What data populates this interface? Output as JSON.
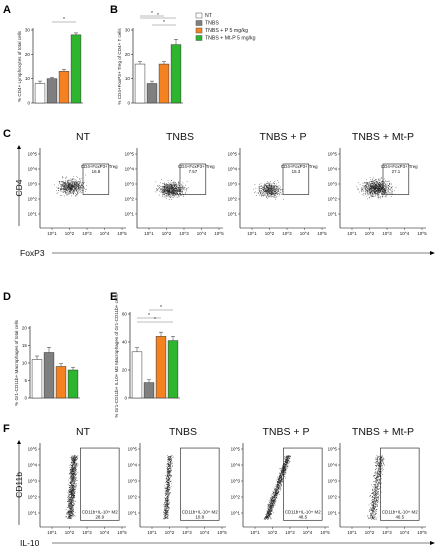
{
  "panel_letters": [
    "A",
    "B",
    "C",
    "D",
    "E",
    "F"
  ],
  "colors": {
    "NT": "#ffffff",
    "TNBS": "#7f7f7f",
    "TNBS_P": "#f58220",
    "TNBS_MtP": "#2db52d",
    "dots": "#222222"
  },
  "legend": [
    "NT",
    "TNBS",
    "TNBS + P 5 mg/kg",
    "TNBS + Mt-P 5 mg/kg"
  ],
  "significance_mark": "*",
  "chart_data": [
    {
      "id": "A",
      "type": "bar",
      "ylabel": "% CD4+ Lymphocytes of total cells",
      "categories": [
        "NT",
        "TNBS",
        "TNBS + P 5 mg/kg",
        "TNBS + Mt-P 5 mg/kg"
      ],
      "values": [
        8,
        10,
        13,
        28
      ],
      "errors": [
        1,
        0.6,
        0.8,
        0.8
      ],
      "ylim": [
        0,
        30
      ],
      "yticks": [
        0,
        10,
        20,
        30
      ],
      "grid": false
    },
    {
      "id": "B",
      "type": "bar",
      "ylabel": "% CD4+FoxP3+ Treg of CD4+ T cells",
      "categories": [
        "NT",
        "TNBS",
        "TNBS + P 5 mg/kg",
        "TNBS + Mt-P 5 mg/kg"
      ],
      "values": [
        16,
        8,
        16,
        24
      ],
      "errors": [
        1,
        1,
        1,
        2.2
      ],
      "ylim": [
        0,
        30
      ],
      "yticks": [
        0,
        10,
        20,
        30
      ],
      "grid": false
    },
    {
      "id": "D",
      "type": "bar",
      "ylabel": "% Gr1-CD11b+ Macrophages of total cells",
      "categories": [
        "NT",
        "TNBS",
        "TNBS + P 5 mg/kg",
        "TNBS + Mt-P 5 mg/kg"
      ],
      "values": [
        11,
        13,
        9,
        8
      ],
      "errors": [
        1,
        1.5,
        0.8,
        0.8
      ],
      "ylim": [
        0,
        20
      ],
      "yticks": [
        0,
        5,
        10,
        15,
        20
      ],
      "grid": false
    },
    {
      "id": "E",
      "type": "bar",
      "ylabel": "% Gr1-CD11b+ IL10+ M2 Macrophages of Gr1-CD11b+ cells",
      "categories": [
        "NT",
        "TNBS",
        "TNBS + P 5 mg/kg",
        "TNBS + Mt-P 5 mg/kg"
      ],
      "values": [
        33,
        11,
        44,
        41
      ],
      "errors": [
        3,
        2,
        3,
        3
      ],
      "ylim": [
        0,
        60
      ],
      "yticks": [
        0,
        20,
        40,
        60
      ],
      "grid": false
    }
  ],
  "flow_C": {
    "y_axis": "CD4",
    "x_axis": "FoxP3",
    "titles": [
      "NT",
      "TNBS",
      "TNBS + P",
      "TNBS + Mt-P"
    ],
    "gate_label": "CD4+FoxP3+ Treg",
    "gate_values": [
      "16.8",
      "7.57",
      "15.3",
      "27.1"
    ]
  },
  "flow_F": {
    "y_axis": "CD11b",
    "x_axis": "IL-10",
    "titles": [
      "NT",
      "TNBS",
      "TNBS + P",
      "TNBS + Mt-P"
    ],
    "gate_label": "CD11b+IL-10+ M2",
    "gate_values": [
      "28.9",
      "10.8",
      "48.5",
      "46.5"
    ]
  },
  "log_ticks": [
    "10^1",
    "10^2",
    "10^3",
    "10^4",
    "10^5"
  ]
}
